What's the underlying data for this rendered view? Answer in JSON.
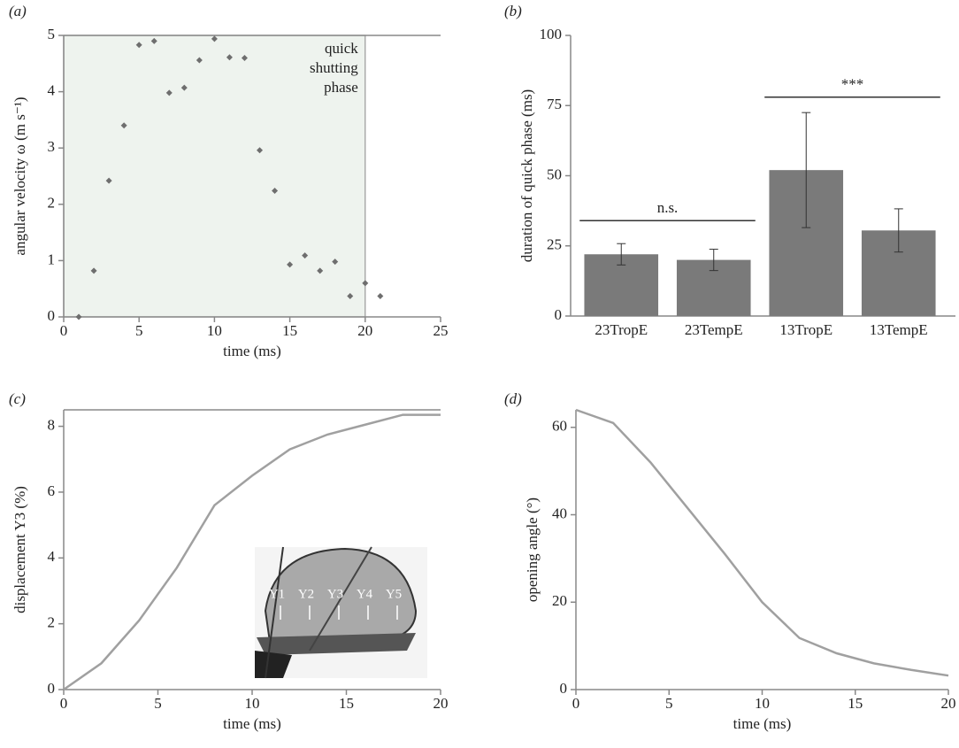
{
  "chart_data": [
    {
      "type": "scatter",
      "panel_label": "(a)",
      "xlabel": "time (ms)",
      "ylabel": "angular velocity ω (m s⁻¹)",
      "x": [
        1,
        2,
        3,
        4,
        5,
        6,
        7,
        8,
        9,
        10,
        11,
        12,
        13,
        14,
        15,
        16,
        17,
        18,
        19,
        20,
        21
      ],
      "values": [
        0,
        0.82,
        2.42,
        3.4,
        4.83,
        4.9,
        3.98,
        4.07,
        4.56,
        4.94,
        4.61,
        4.6,
        2.96,
        2.24,
        0.93,
        1.09,
        0.82,
        0.98,
        0.37,
        0.6,
        0.37
      ],
      "color": "#6e6e6e",
      "xlim": [
        0,
        25
      ],
      "xticks": [
        0,
        5,
        10,
        15,
        20,
        25
      ],
      "ylim": [
        0,
        5
      ],
      "yticks": [
        0,
        1,
        2,
        3,
        4,
        5
      ],
      "shaded_region": {
        "xlim": [
          0,
          20
        ],
        "color": "#eef3ee",
        "label": [
          "quick",
          "shutting",
          "phase"
        ]
      }
    },
    {
      "type": "bar",
      "panel_label": "(b)",
      "ylabel": "duration of quick phase (ms)",
      "categories": [
        "23TropE",
        "23TempE",
        "13TropE",
        "13TempE"
      ],
      "values": [
        22,
        20,
        52,
        30.5
      ],
      "errors": [
        3.8,
        3.8,
        20.5,
        7.7
      ],
      "color": "#7a7a7a",
      "ylim": [
        0,
        100
      ],
      "yticks": [
        0,
        25,
        50,
        75,
        100
      ],
      "annotations": [
        {
          "text": "n.s.",
          "from": 0,
          "to": 1,
          "y": 34
        },
        {
          "text": "***",
          "from": 2,
          "to": 3,
          "y": 78
        }
      ]
    },
    {
      "type": "line",
      "panel_label": "(c)",
      "xlabel": "time (ms)",
      "ylabel": "displacement Y3 (%)",
      "x": [
        0,
        2,
        4,
        6,
        8,
        10,
        12,
        14,
        16,
        18,
        20
      ],
      "values": [
        0,
        0.8,
        2.1,
        3.7,
        5.6,
        6.5,
        7.3,
        7.75,
        8.05,
        8.35,
        8.35
      ],
      "color": "#a0a0a0",
      "xlim": [
        0,
        20
      ],
      "xticks": [
        0,
        5,
        10,
        15,
        20
      ],
      "ylim": [
        0,
        8.5
      ],
      "yticks": [
        0,
        2,
        4,
        6,
        8
      ],
      "inset_labels": [
        "Y1",
        "Y2",
        "Y3",
        "Y4",
        "Y5"
      ]
    },
    {
      "type": "line",
      "panel_label": "(d)",
      "xlabel": "time (ms)",
      "ylabel": "opening angle (°)",
      "x": [
        0,
        2,
        4,
        6,
        8,
        10,
        12,
        14,
        16,
        18,
        20
      ],
      "values": [
        64,
        61,
        52,
        41.5,
        31,
        20,
        11.8,
        8.3,
        6,
        4.5,
        3.2
      ],
      "color": "#a0a0a0",
      "xlim": [
        0,
        20
      ],
      "xticks": [
        0,
        5,
        10,
        15,
        20
      ],
      "ylim": [
        0,
        64
      ],
      "yticks": [
        0,
        20,
        40,
        60
      ]
    }
  ]
}
